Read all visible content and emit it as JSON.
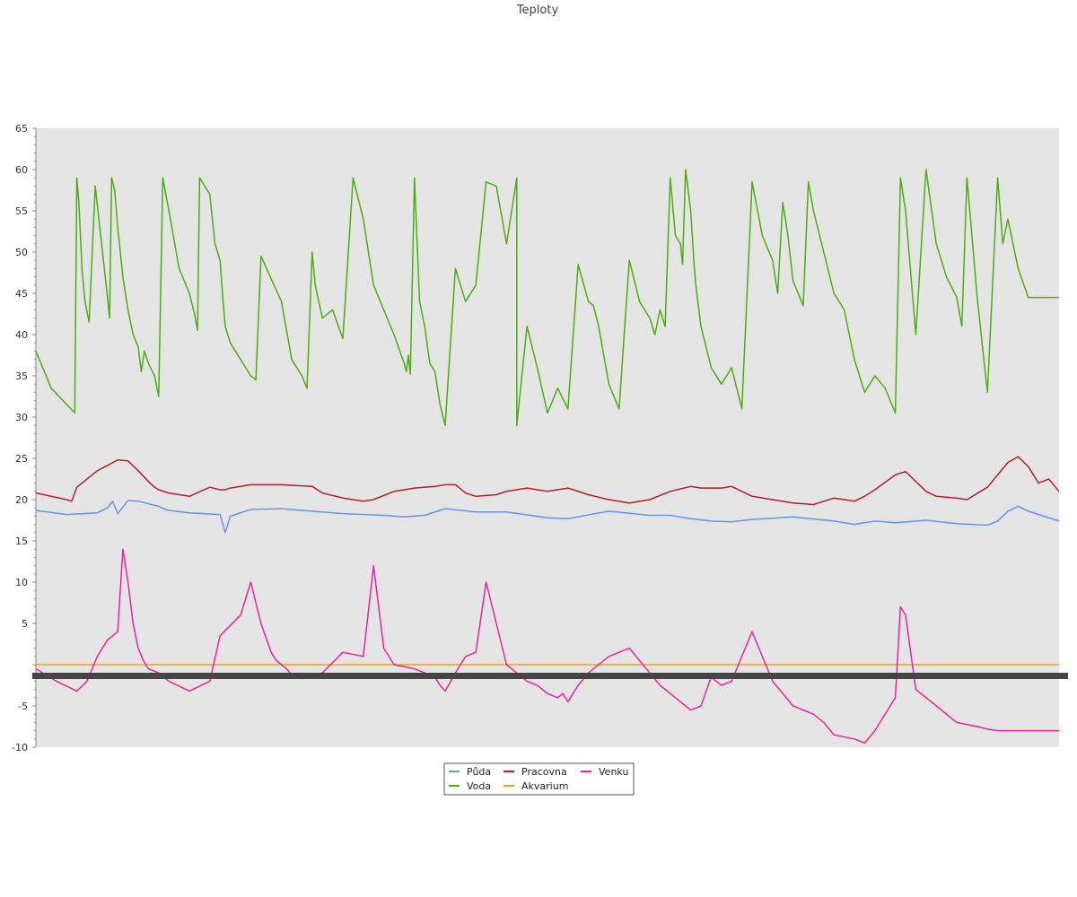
{
  "chart_data": {
    "type": "line",
    "title": "Teploty",
    "xlabel": "",
    "ylabel": "",
    "ylim": [
      -10,
      65
    ],
    "yticks": [
      65,
      60,
      55,
      50,
      45,
      40,
      35,
      30,
      25,
      20,
      15,
      10,
      5,
      -5,
      -10
    ],
    "grid": false,
    "legend_position": "bottom-center",
    "plot_background": "#e5e5e5",
    "series": [
      {
        "name": "Půda",
        "color": "#6495ed",
        "x": [
          0,
          0.03,
          0.06,
          0.07,
          0.075,
          0.08,
          0.09,
          0.1,
          0.12,
          0.125,
          0.13,
          0.15,
          0.18,
          0.185,
          0.19,
          0.21,
          0.24,
          0.27,
          0.3,
          0.34,
          0.36,
          0.38,
          0.4,
          0.43,
          0.46,
          0.5,
          0.52,
          0.56,
          0.6,
          0.62,
          0.64,
          0.66,
          0.68,
          0.7,
          0.74,
          0.78,
          0.8,
          0.82,
          0.84,
          0.87,
          0.9,
          0.93,
          0.94,
          0.95,
          0.96,
          0.97,
          1.0
        ],
        "y": [
          18.7,
          18.2,
          18.4,
          19.0,
          19.8,
          18.3,
          19.9,
          19.8,
          19.2,
          18.9,
          18.7,
          18.4,
          18.2,
          16.0,
          18.0,
          18.8,
          18.9,
          18.6,
          18.3,
          18.1,
          17.9,
          18.1,
          18.9,
          18.5,
          18.5,
          17.8,
          17.7,
          18.6,
          18.1,
          18.1,
          17.7,
          17.4,
          17.3,
          17.6,
          17.9,
          17.4,
          17.0,
          17.4,
          17.2,
          17.5,
          17.1,
          16.9,
          17.4,
          18.6,
          19.2,
          18.6,
          17.4
        ]
      },
      {
        "name": "Voda",
        "color": "#4caf10",
        "x": [
          0,
          0.015,
          0.038,
          0.04,
          0.042,
          0.045,
          0.048,
          0.052,
          0.058,
          0.07,
          0.072,
          0.074,
          0.077,
          0.08,
          0.085,
          0.09,
          0.095,
          0.1,
          0.103,
          0.106,
          0.11,
          0.116,
          0.12,
          0.124,
          0.13,
          0.14,
          0.15,
          0.155,
          0.158,
          0.16,
          0.17,
          0.175,
          0.18,
          0.183,
          0.185,
          0.19,
          0.2,
          0.21,
          0.215,
          0.22,
          0.24,
          0.25,
          0.26,
          0.265,
          0.27,
          0.273,
          0.28,
          0.29,
          0.3,
          0.31,
          0.32,
          0.33,
          0.34,
          0.35,
          0.36,
          0.362,
          0.364,
          0.366,
          0.37,
          0.375,
          0.38,
          0.385,
          0.39,
          0.395,
          0.4,
          0.41,
          0.42,
          0.43,
          0.44,
          0.45,
          0.46,
          0.47,
          0.47,
          0.475,
          0.48,
          0.49,
          0.5,
          0.51,
          0.52,
          0.53,
          0.54,
          0.545,
          0.55,
          0.56,
          0.57,
          0.58,
          0.59,
          0.6,
          0.605,
          0.61,
          0.615,
          0.62,
          0.625,
          0.63,
          0.632,
          0.635,
          0.64,
          0.643,
          0.645,
          0.65,
          0.66,
          0.67,
          0.68,
          0.685,
          0.69,
          0.7,
          0.71,
          0.72,
          0.725,
          0.73,
          0.735,
          0.74,
          0.75,
          0.755,
          0.76,
          0.77,
          0.78,
          0.79,
          0.8,
          0.81,
          0.82,
          0.83,
          0.84,
          0.845,
          0.85,
          0.86,
          0.87,
          0.88,
          0.89,
          0.9,
          0.905,
          0.91,
          0.92,
          0.93,
          0.94,
          0.945,
          0.95,
          0.96,
          0.97,
          0.98,
          0.99,
          0.995,
          1.0
        ],
        "y": [
          38.0,
          33.5,
          30.5,
          59.0,
          56.0,
          48.0,
          44.0,
          41.5,
          58.0,
          44.5,
          42.0,
          59.0,
          57.5,
          53.0,
          47.0,
          43.0,
          40.0,
          38.5,
          35.5,
          38.0,
          36.5,
          35.0,
          32.5,
          59.0,
          55.0,
          48.0,
          45.0,
          42.5,
          40.5,
          59.0,
          57.0,
          51.0,
          49.0,
          44.0,
          41.0,
          39.0,
          37.0,
          35.0,
          34.5,
          49.5,
          44.0,
          37.0,
          35.0,
          33.5,
          50.0,
          46.0,
          42.0,
          43.0,
          39.5,
          59.0,
          54.0,
          46.0,
          43.0,
          40.0,
          36.5,
          35.5,
          37.5,
          35.2,
          59.0,
          44.0,
          41.0,
          36.5,
          35.5,
          31.5,
          29.0,
          48.0,
          44.0,
          46.0,
          58.5,
          58.0,
          51.0,
          59.0,
          29.0,
          35.0,
          41.0,
          36.0,
          30.5,
          33.5,
          31.0,
          48.5,
          44.0,
          43.5,
          41.0,
          34.0,
          31.0,
          49.0,
          44.0,
          42.0,
          40.0,
          43.0,
          41.0,
          59.0,
          52.0,
          51.0,
          48.5,
          60.0,
          55.0,
          49.0,
          46.0,
          41.0,
          36.0,
          34.0,
          36.0,
          33.5,
          31.0,
          58.5,
          52.0,
          49.0,
          45.0,
          56.0,
          52.0,
          46.5,
          43.5,
          58.5,
          55.0,
          50.0,
          45.0,
          43.0,
          37.0,
          33.0,
          35.0,
          33.5,
          30.5,
          59.0,
          55.0,
          40.0,
          60.0,
          51.0,
          47.0,
          44.5,
          41.0,
          59.0,
          44.5,
          33.0,
          59.0,
          51.0,
          54.0,
          48.0,
          44.5,
          44.5,
          44.5,
          44.5,
          44.5
        ]
      },
      {
        "name": "Pracovna",
        "color": "#b22222",
        "x": [
          0,
          0.03,
          0.035,
          0.04,
          0.06,
          0.08,
          0.09,
          0.1,
          0.11,
          0.115,
          0.12,
          0.13,
          0.15,
          0.17,
          0.18,
          0.185,
          0.19,
          0.21,
          0.24,
          0.27,
          0.28,
          0.3,
          0.32,
          0.33,
          0.35,
          0.37,
          0.39,
          0.4,
          0.41,
          0.42,
          0.43,
          0.45,
          0.46,
          0.48,
          0.5,
          0.52,
          0.54,
          0.56,
          0.58,
          0.6,
          0.62,
          0.64,
          0.65,
          0.67,
          0.68,
          0.7,
          0.72,
          0.74,
          0.76,
          0.78,
          0.79,
          0.8,
          0.81,
          0.82,
          0.84,
          0.85,
          0.87,
          0.88,
          0.9,
          0.91,
          0.93,
          0.94,
          0.95,
          0.96,
          0.97,
          0.98,
          0.99,
          1.0
        ],
        "y": [
          20.8,
          20.0,
          19.8,
          21.5,
          23.5,
          24.8,
          24.7,
          23.5,
          22.2,
          21.6,
          21.2,
          20.8,
          20.4,
          21.5,
          21.2,
          21.2,
          21.4,
          21.8,
          21.8,
          21.6,
          20.8,
          20.2,
          19.8,
          20.0,
          21.0,
          21.4,
          21.6,
          21.8,
          21.8,
          20.8,
          20.4,
          20.6,
          21.0,
          21.4,
          21.0,
          21.4,
          20.6,
          20.0,
          19.6,
          20.0,
          21.0,
          21.6,
          21.4,
          21.4,
          21.6,
          20.4,
          20.0,
          19.6,
          19.4,
          20.2,
          20.0,
          19.8,
          20.4,
          21.2,
          23.0,
          23.4,
          21.0,
          20.4,
          20.2,
          20.0,
          21.5,
          23.0,
          24.5,
          25.2,
          24.0,
          22.0,
          22.5,
          21.0
        ]
      },
      {
        "name": "Akvarium",
        "color": "#e8a317",
        "x": [
          0,
          1.0
        ],
        "y": [
          0,
          0
        ]
      },
      {
        "name": "Venku",
        "color": "#f0209a",
        "x": [
          0,
          0.02,
          0.04,
          0.05,
          0.06,
          0.07,
          0.08,
          0.085,
          0.09,
          0.095,
          0.1,
          0.105,
          0.11,
          0.12,
          0.13,
          0.15,
          0.17,
          0.18,
          0.2,
          0.21,
          0.22,
          0.23,
          0.235,
          0.24,
          0.245,
          0.25,
          0.26,
          0.28,
          0.3,
          0.32,
          0.33,
          0.34,
          0.35,
          0.37,
          0.38,
          0.385,
          0.39,
          0.395,
          0.4,
          0.41,
          0.42,
          0.43,
          0.44,
          0.45,
          0.46,
          0.47,
          0.48,
          0.49,
          0.5,
          0.51,
          0.515,
          0.52,
          0.53,
          0.54,
          0.56,
          0.58,
          0.6,
          0.61,
          0.62,
          0.63,
          0.64,
          0.65,
          0.66,
          0.67,
          0.68,
          0.7,
          0.72,
          0.74,
          0.76,
          0.77,
          0.78,
          0.8,
          0.81,
          0.82,
          0.83,
          0.835,
          0.84,
          0.845,
          0.85,
          0.86,
          0.88,
          0.9,
          0.92,
          0.93,
          0.94,
          0.95,
          0.955,
          0.96,
          0.965,
          0.97,
          0.98,
          0.99,
          1.0
        ],
        "y": [
          -0.5,
          -2.0,
          -3.2,
          -2.0,
          1.0,
          3.0,
          4.0,
          14.0,
          10.0,
          5.0,
          2.0,
          0.5,
          -0.5,
          -1.0,
          -2.0,
          -3.2,
          -2.0,
          3.5,
          6.0,
          10.0,
          5.0,
          1.5,
          0.5,
          0.0,
          -0.5,
          -1.2,
          -1.7,
          -1.0,
          1.5,
          1.0,
          12.0,
          2.0,
          0.0,
          -0.5,
          -1.0,
          -1.2,
          -1.5,
          -2.5,
          -3.2,
          -1.0,
          1.0,
          1.5,
          10.0,
          5.0,
          0.0,
          -1.0,
          -2.0,
          -2.5,
          -3.5,
          -4.0,
          -3.5,
          -4.5,
          -2.5,
          -1.0,
          1.0,
          2.0,
          -1.0,
          -2.5,
          -3.5,
          -4.5,
          -5.5,
          -5.0,
          -1.5,
          -2.5,
          -2.0,
          4.0,
          -2.0,
          -5.0,
          -6.0,
          -7.0,
          -8.5,
          -9.0,
          -9.5,
          -8.0,
          -6.0,
          -5.0,
          -4.0,
          7.0,
          6.0,
          -3.0,
          -5.0,
          -7.0,
          -7.5,
          -7.8,
          -8.0,
          -8.0,
          -8.0,
          -8.0,
          -8.0,
          -8.0,
          -8.0,
          -8.0,
          -8.0
        ]
      }
    ]
  },
  "legend": {
    "items": [
      {
        "label": "Půda",
        "color": "#6495ed"
      },
      {
        "label": "Pracovna",
        "color": "#b22222"
      },
      {
        "label": "Venku",
        "color": "#f0209a"
      },
      {
        "label": "Voda",
        "color": "#4caf10"
      },
      {
        "label": "Akvarium",
        "color": "#e8a317"
      }
    ]
  }
}
